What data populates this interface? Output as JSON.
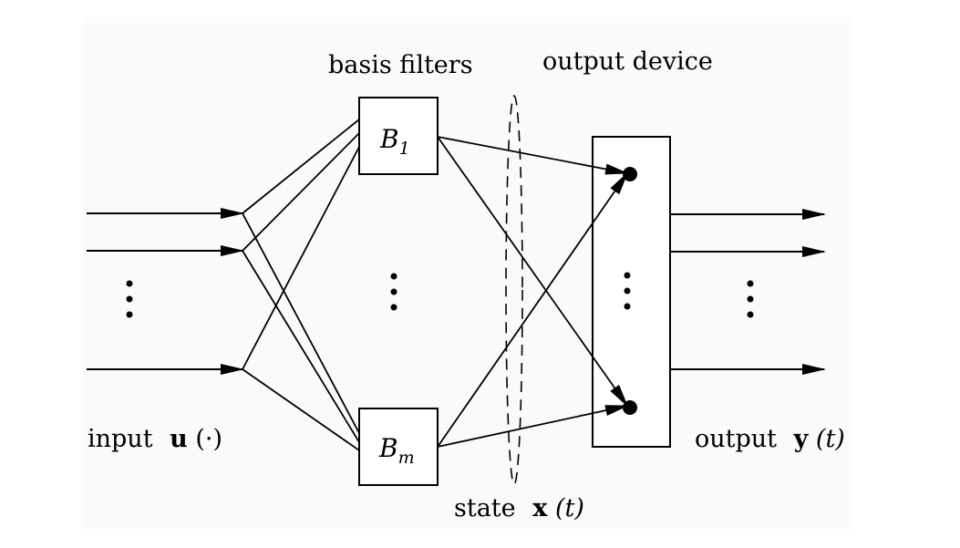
{
  "labels": {
    "basis_filters": "basis filters",
    "output_device": "output device",
    "state_prefix": "state",
    "state_symbol": "x",
    "state_arg": "(t)",
    "input_prefix": "input",
    "input_symbol": "u",
    "input_arg": "(·)",
    "output_prefix": "output",
    "output_symbol": "y",
    "output_arg": "(t)"
  },
  "filters": {
    "first": {
      "symbol": "B",
      "subscript": "1"
    },
    "last": {
      "symbol": "B",
      "subscript": "m"
    }
  },
  "ellipsis": "⋮",
  "colors": {
    "background": "#ffffff",
    "stroke": "#000000",
    "panel": "#fafafa"
  }
}
